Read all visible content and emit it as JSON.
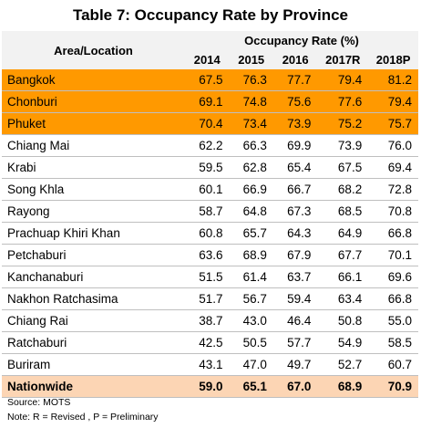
{
  "title": "Table 7: Occupancy Rate by Province",
  "header": {
    "area_label": "Area/Location",
    "group_label": "Occupancy Rate (%)",
    "years": [
      "2014",
      "2015",
      "2016",
      "2017R",
      "2018P"
    ]
  },
  "rows": [
    {
      "name": "Bangkok",
      "values": [
        "67.5",
        "76.3",
        "77.7",
        "79.4",
        "81.2"
      ],
      "highlight": true
    },
    {
      "name": "Chonburi",
      "values": [
        "69.1",
        "74.8",
        "75.6",
        "77.6",
        "79.4"
      ],
      "highlight": true
    },
    {
      "name": "Phuket",
      "values": [
        "70.4",
        "73.4",
        "73.9",
        "75.2",
        "75.7"
      ],
      "highlight": true
    },
    {
      "name": "Chiang Mai",
      "values": [
        "62.2",
        "66.3",
        "69.9",
        "73.9",
        "76.0"
      ]
    },
    {
      "name": "Krabi",
      "values": [
        "59.5",
        "62.8",
        "65.4",
        "67.5",
        "69.4"
      ]
    },
    {
      "name": "Song Khla",
      "values": [
        "60.1",
        "66.9",
        "66.7",
        "68.2",
        "72.8"
      ]
    },
    {
      "name": "Rayong",
      "values": [
        "58.7",
        "64.8",
        "67.3",
        "68.5",
        "70.8"
      ]
    },
    {
      "name": "Prachuap Khiri Khan",
      "values": [
        "60.8",
        "65.7",
        "64.3",
        "64.9",
        "66.8"
      ]
    },
    {
      "name": "Petchaburi",
      "values": [
        "63.6",
        "68.9",
        "67.9",
        "67.7",
        "70.1"
      ]
    },
    {
      "name": "Kanchanaburi",
      "values": [
        "51.5",
        "61.4",
        "63.7",
        "66.1",
        "69.6"
      ]
    },
    {
      "name": "Nakhon Ratchasima",
      "values": [
        "51.7",
        "56.7",
        "59.4",
        "63.4",
        "66.8"
      ]
    },
    {
      "name": "Chiang Rai",
      "values": [
        "38.7",
        "43.0",
        "46.4",
        "50.8",
        "55.0"
      ]
    },
    {
      "name": "Ratchaburi",
      "values": [
        "42.5",
        "50.5",
        "57.7",
        "54.9",
        "58.5"
      ]
    },
    {
      "name": "Buriram",
      "values": [
        "43.1",
        "47.0",
        "49.7",
        "52.7",
        "60.7"
      ]
    }
  ],
  "total": {
    "name": "Nationwide",
    "values": [
      "59.0",
      "65.1",
      "67.0",
      "68.9",
      "70.9"
    ]
  },
  "footnotes": {
    "source": "Source: MOTS",
    "note": "Note: R = Revised  ,  P = Preliminary"
  },
  "colors": {
    "highlight_row": "#ff9900",
    "total_row": "#fcd5b4",
    "header_bg": "#f2f2f2"
  }
}
